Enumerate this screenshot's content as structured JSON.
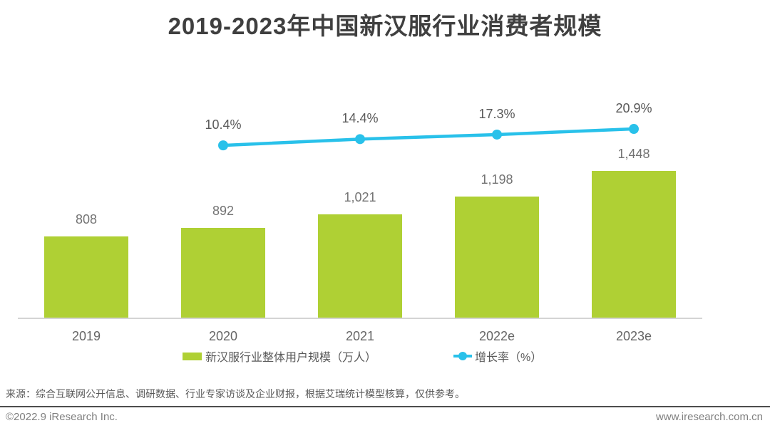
{
  "title": "2019-2023年中国新汉服行业消费者规模",
  "chart_data": {
    "type": "bar+line",
    "categories": [
      "2019",
      "2020",
      "2021",
      "2022e",
      "2023e"
    ],
    "series": [
      {
        "name": "新汉服行业整体用户规模（万人）",
        "type": "bar",
        "values": [
          808,
          892,
          1021,
          1198,
          1448
        ]
      },
      {
        "name": "增长率（%）",
        "type": "line",
        "values": [
          null,
          10.4,
          14.4,
          17.3,
          20.9
        ]
      }
    ],
    "bar_value_labels": [
      "808",
      "892",
      "1,021",
      "1,198",
      "1,448"
    ],
    "line_value_labels": [
      "10.4%",
      "14.4%",
      "17.3%",
      "20.9%"
    ],
    "colors": {
      "bar": "#afd034",
      "line": "#29c1ea"
    },
    "xlabel": "",
    "ylabel": "",
    "grid": false,
    "legend_position": "bottom"
  },
  "legend": {
    "bar": "新汉服行业整体用户规模（万人）",
    "line": "增长率（%）"
  },
  "source": "来源：综合互联网公开信息、调研数据、行业专家访谈及企业财报，根据艾瑞统计模型核算，仅供参考。",
  "footer": {
    "left": "©2022.9 iResearch Inc.",
    "right": "www.iresearch.com.cn"
  }
}
